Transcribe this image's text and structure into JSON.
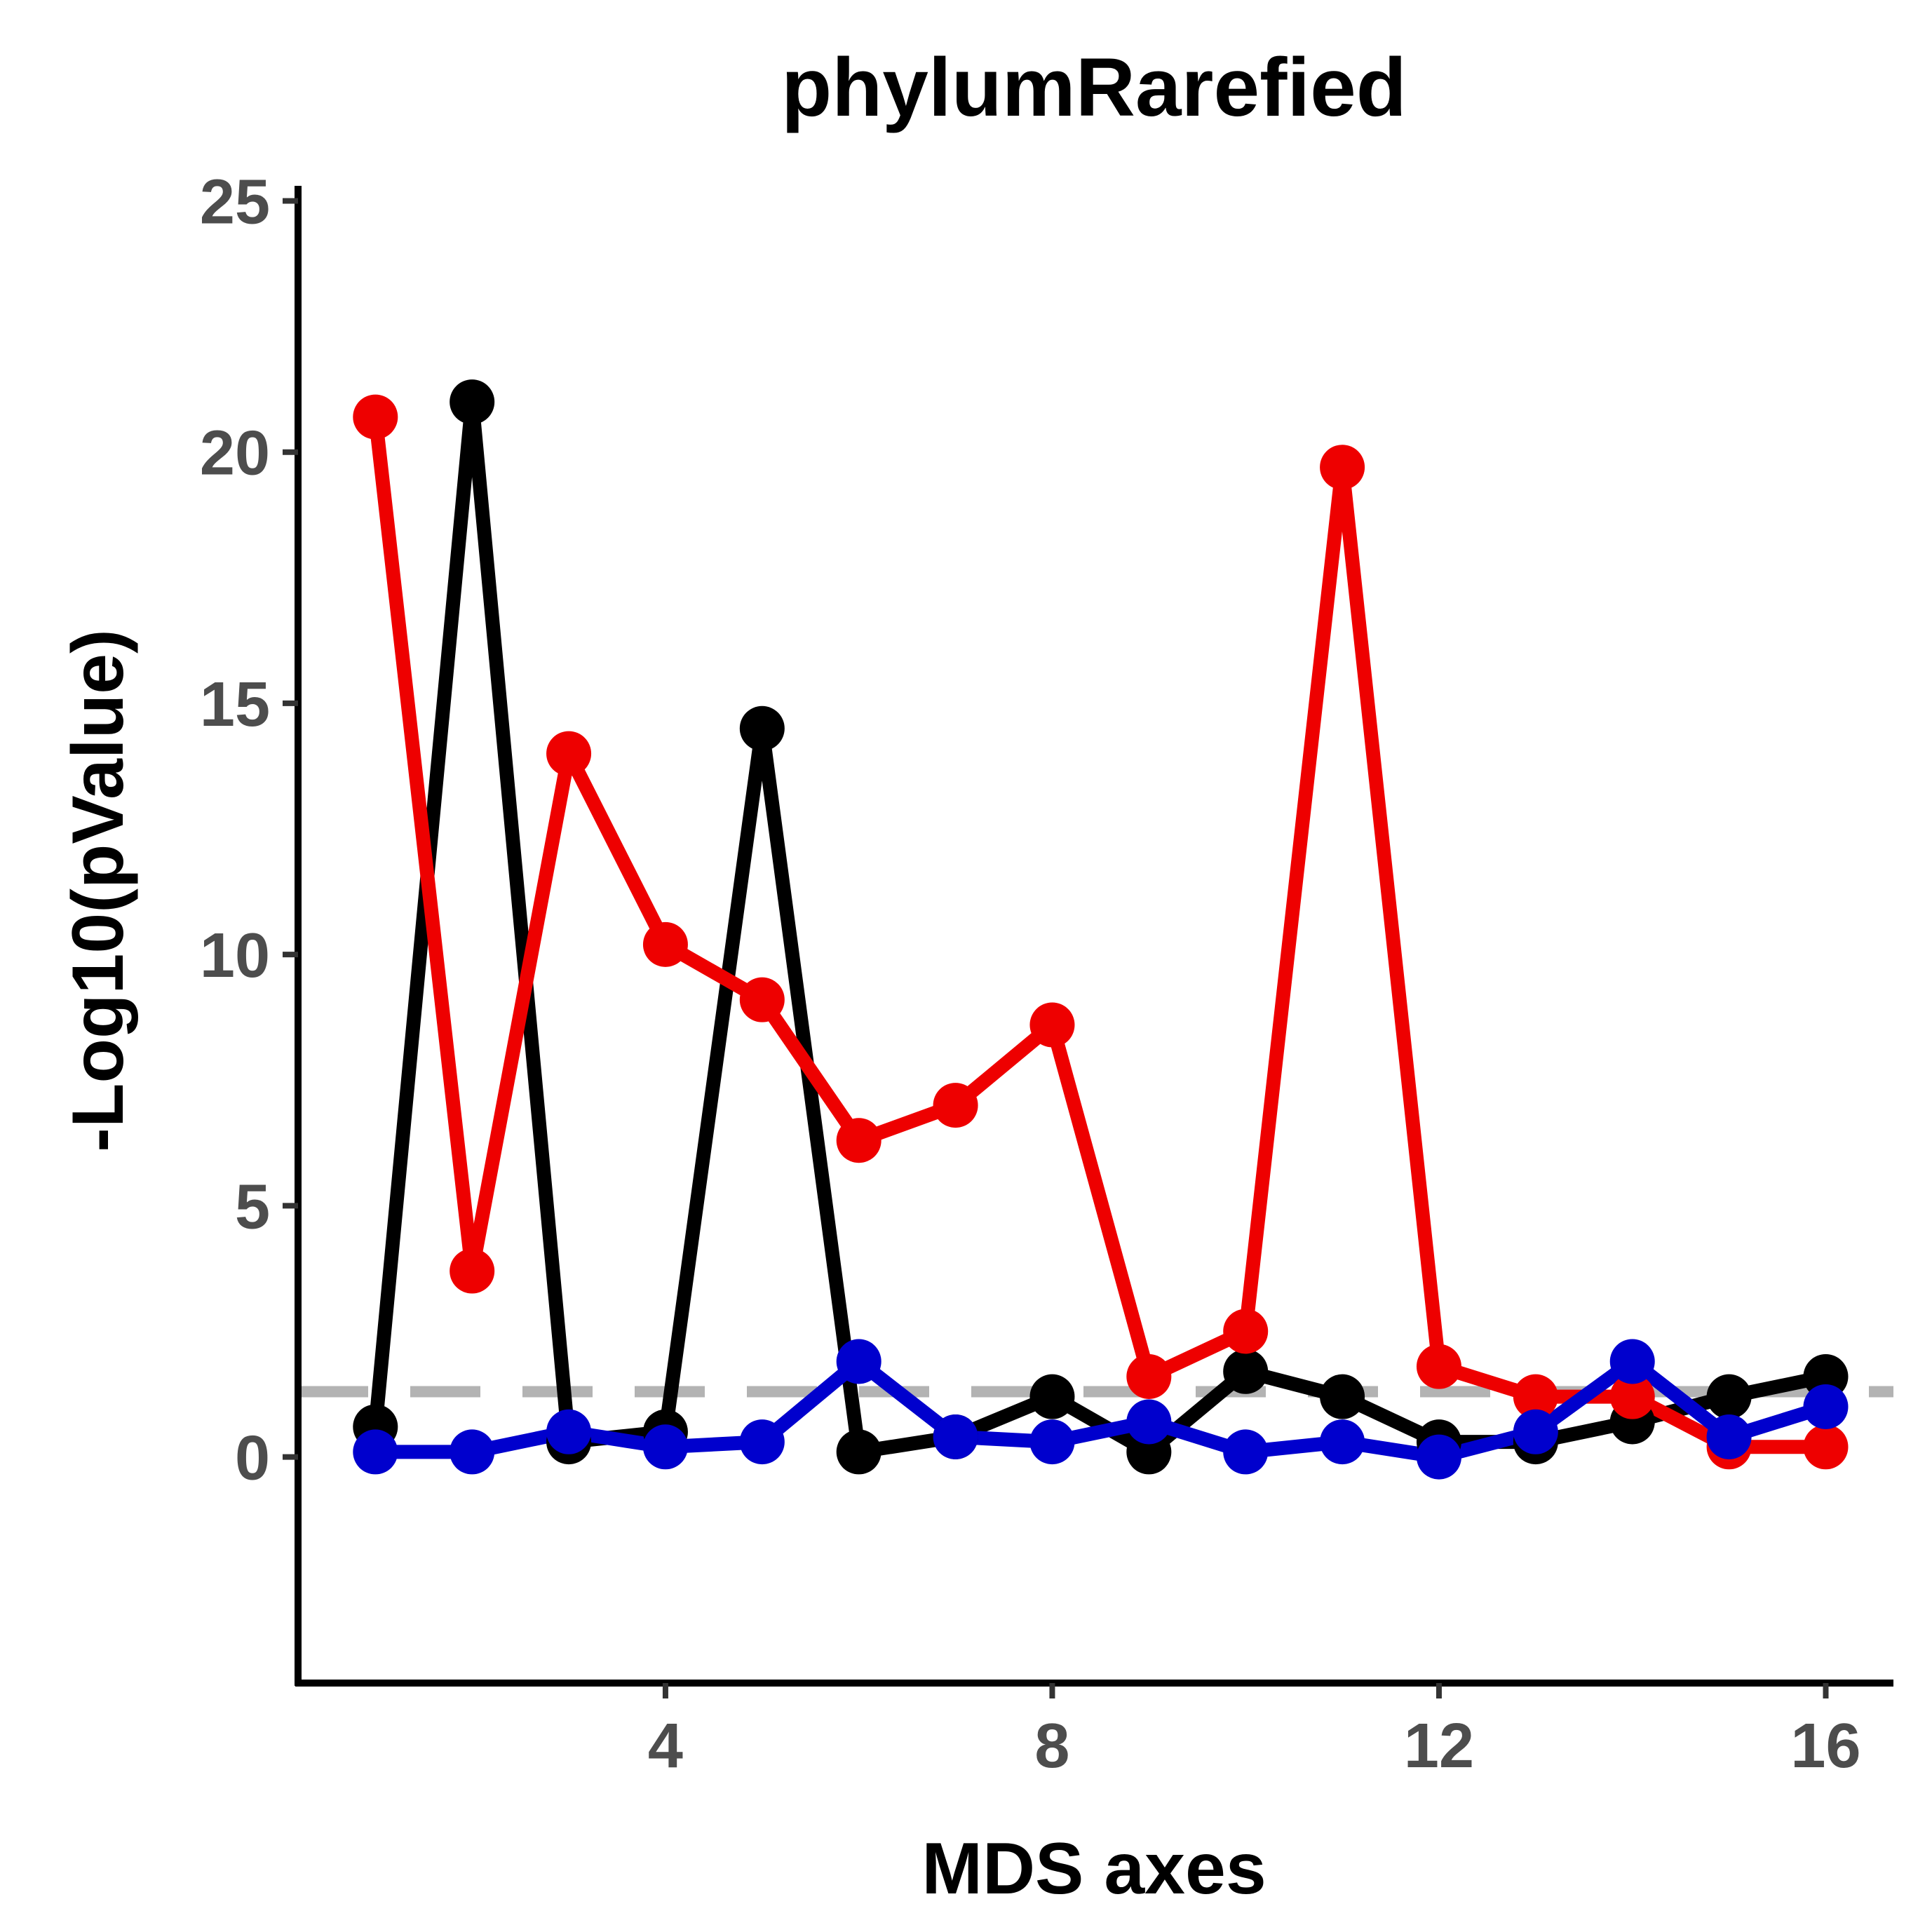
{
  "chart_data": {
    "type": "line",
    "title": "phylumRarefied",
    "xlabel": "MDS axes",
    "ylabel": "-Log10(pValue)",
    "xlim": [
      0.2,
      16.7
    ],
    "ylim": [
      -4.5,
      25.3
    ],
    "x_ticks": [
      4,
      8,
      12,
      16
    ],
    "y_ticks": [
      0,
      5,
      10,
      15,
      20,
      25
    ],
    "grid": false,
    "legend": "none",
    "x": [
      1,
      2,
      3,
      4,
      5,
      6,
      7,
      8,
      9,
      10,
      11,
      12,
      13,
      14,
      15,
      16
    ],
    "series": [
      {
        "color": "#000000",
        "values": [
          0.6,
          21.0,
          0.3,
          0.5,
          14.5,
          0.1,
          0.4,
          1.2,
          0.1,
          1.7,
          1.2,
          0.3,
          0.3,
          0.7,
          1.2,
          1.6
        ]
      },
      {
        "color": "#ee0000",
        "values": [
          20.7,
          3.7,
          14.0,
          10.2,
          9.1,
          6.3,
          7.0,
          8.6,
          1.6,
          2.5,
          19.7,
          1.8,
          1.2,
          1.2,
          0.2,
          0.2
        ]
      },
      {
        "color": "#0000cd",
        "values": [
          0.1,
          0.1,
          0.5,
          0.2,
          0.3,
          1.9,
          0.4,
          0.3,
          0.7,
          0.1,
          0.3,
          0.0,
          0.5,
          1.9,
          0.4,
          1.0
        ]
      }
    ],
    "threshold": {
      "y": 1.3,
      "color": "#b3b3b3",
      "style": "dashed"
    }
  }
}
